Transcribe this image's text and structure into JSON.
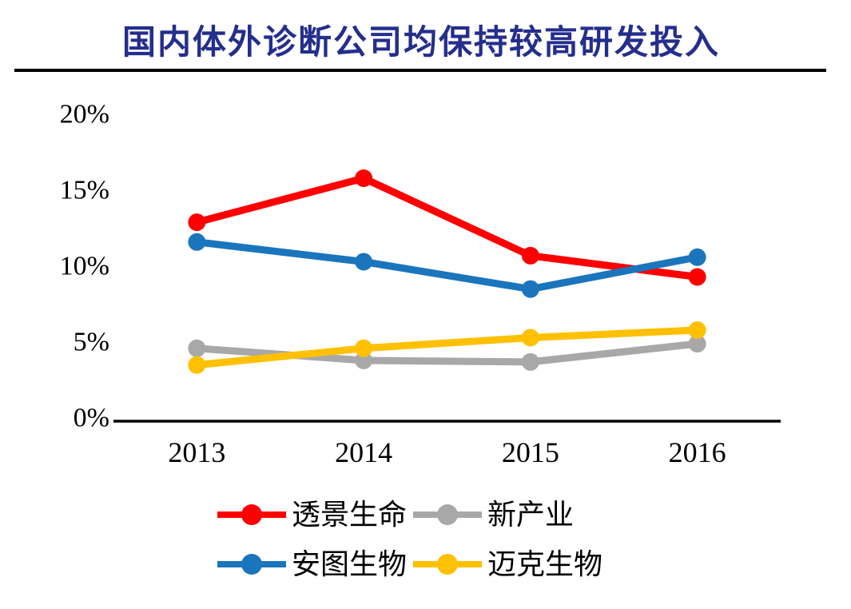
{
  "title": "国内体外诊断公司均保持较高研发投入",
  "title_color": "#242E8C",
  "chart_data": {
    "type": "line",
    "title": "国内体外诊断公司均保持较高研发投入",
    "categories": [
      "2013",
      "2014",
      "2015",
      "2016"
    ],
    "series": [
      {
        "name": "透景生命",
        "color": "#FF0000",
        "values": [
          13.1,
          16.0,
          10.9,
          9.5
        ]
      },
      {
        "name": "新产业",
        "color": "#A8A8A8",
        "values": [
          4.8,
          4.0,
          3.9,
          5.1
        ]
      },
      {
        "name": "安图生物",
        "color": "#1B75BC",
        "values": [
          11.8,
          10.5,
          8.7,
          10.8
        ]
      },
      {
        "name": "迈克生物",
        "color": "#FFC000",
        "values": [
          3.7,
          4.8,
          5.5,
          6.0
        ]
      }
    ],
    "y_axis": {
      "min": 0,
      "max": 20,
      "ticks": [
        {
          "label": "20%",
          "value": 20
        },
        {
          "label": "15%",
          "value": 15
        },
        {
          "label": "10%",
          "value": 10
        },
        {
          "label": "5%",
          "value": 5
        },
        {
          "label": "0%",
          "value": 0
        }
      ]
    },
    "grid": false,
    "legend_position": "bottom",
    "legend_rows": [
      [
        "透景生命",
        "新产业"
      ],
      [
        "安图生物",
        "迈克生物"
      ]
    ],
    "axis_color": "#000000",
    "tick_text_color": "#000000"
  }
}
